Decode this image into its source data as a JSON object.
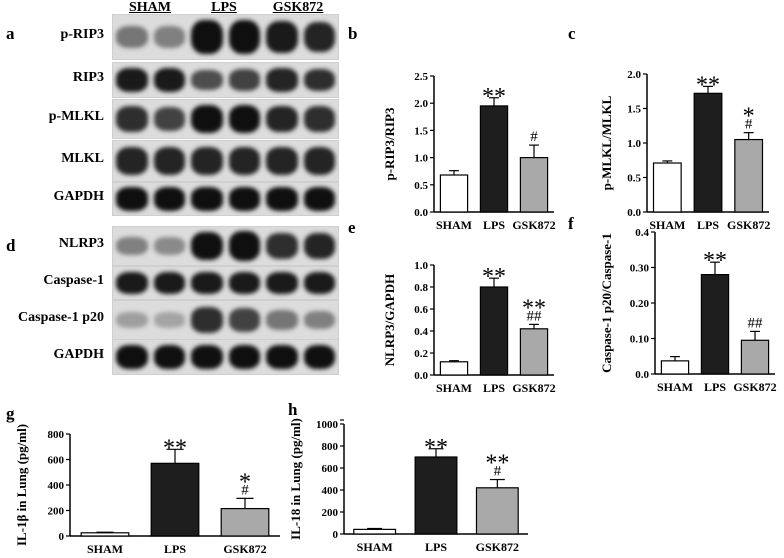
{
  "panel_letters": {
    "a": "a",
    "b": "b",
    "c": "c",
    "d": "d",
    "e": "e",
    "f": "f",
    "g": "g",
    "h": "h"
  },
  "blots": {
    "lanes": [
      "SHAM",
      "LPS",
      "GSK872"
    ],
    "group1": {
      "rows": [
        {
          "label": "p-RIP3",
          "intensity": [
            0.35,
            0.3,
            0.95,
            0.95,
            0.8,
            0.75
          ]
        },
        {
          "label": "RIP3",
          "intensity": [
            0.8,
            0.8,
            0.55,
            0.6,
            0.75,
            0.7
          ]
        },
        {
          "label": "p-MLKL",
          "intensity": [
            0.7,
            0.6,
            0.85,
            0.85,
            0.75,
            0.7
          ]
        },
        {
          "label": "MLKL",
          "intensity": [
            0.75,
            0.75,
            0.75,
            0.75,
            0.75,
            0.75
          ]
        },
        {
          "label": "GAPDH",
          "intensity": [
            0.85,
            0.85,
            0.85,
            0.85,
            0.85,
            0.85
          ]
        }
      ]
    },
    "group2": {
      "rows": [
        {
          "label": "NLRP3",
          "intensity": [
            0.3,
            0.25,
            0.9,
            0.95,
            0.7,
            0.75
          ]
        },
        {
          "label": "Caspase-1",
          "intensity": [
            0.8,
            0.8,
            0.8,
            0.8,
            0.8,
            0.8
          ]
        },
        {
          "label": "Caspase-1 p20",
          "intensity": [
            0.15,
            0.12,
            0.7,
            0.6,
            0.35,
            0.3
          ]
        },
        {
          "label": "GAPDH",
          "intensity": [
            0.85,
            0.85,
            0.85,
            0.85,
            0.85,
            0.85
          ]
        }
      ]
    }
  },
  "colors": {
    "sham": "#ffffff",
    "lps": "#1e1e1e",
    "gsk": "#a9a9a9"
  },
  "chart_data": [
    {
      "id": "b",
      "type": "bar",
      "categories": [
        "SHAM",
        "LPS",
        "GSK872"
      ],
      "values": [
        0.68,
        1.95,
        1.0
      ],
      "errors": [
        0.08,
        0.15,
        0.23
      ],
      "ylabel": "p-RIP3/RIP3",
      "ylim": [
        0,
        2.5
      ],
      "yticks": [
        "0.0",
        "0.5",
        "1.0",
        "1.5",
        "2.0",
        "2.5"
      ],
      "annotations": [
        "",
        "**",
        "#"
      ]
    },
    {
      "id": "c",
      "type": "bar",
      "categories": [
        "SHAM",
        "LPS",
        "GSK872"
      ],
      "values": [
        0.71,
        1.72,
        1.05
      ],
      "errors": [
        0.03,
        0.1,
        0.1
      ],
      "ylabel": "p-MLKL/MLKL",
      "ylim": [
        0,
        2.0
      ],
      "yticks": [
        "0.0",
        "0.5",
        "1.0",
        "1.5",
        "2.0"
      ],
      "annotations": [
        "",
        "**",
        "*\n#"
      ]
    },
    {
      "id": "e",
      "type": "bar",
      "categories": [
        "SHAM",
        "LPS",
        "GSK872"
      ],
      "values": [
        0.12,
        0.8,
        0.42
      ],
      "errors": [
        0.01,
        0.08,
        0.04
      ],
      "ylabel": "NLRP3/GAPDH",
      "ylim": [
        0,
        1.0
      ],
      "yticks": [
        "0.0",
        "0.2",
        "0.4",
        "0.6",
        "0.8",
        "1.0"
      ],
      "annotations": [
        "",
        "**",
        "**\n##"
      ]
    },
    {
      "id": "f",
      "type": "bar",
      "categories": [
        "SHAM",
        "LPS",
        "GSK872"
      ],
      "values": [
        0.037,
        0.28,
        0.095
      ],
      "errors": [
        0.012,
        0.035,
        0.025
      ],
      "ylabel": "Caspase-1 p20/Caspase-1",
      "ylim": [
        0,
        0.4
      ],
      "yticks": [
        "0.0",
        "0.10",
        "0.20",
        "0.30",
        "0.4"
      ],
      "annotations": [
        "",
        "**",
        "##"
      ]
    },
    {
      "id": "g",
      "type": "bar",
      "categories": [
        "SHAM",
        "LPS",
        "GSK872"
      ],
      "values": [
        25,
        570,
        215
      ],
      "errors": [
        5,
        110,
        80
      ],
      "ylabel": "IL-1β in Lung (pg/ml)",
      "ylim": [
        0,
        800
      ],
      "yticks": [
        "0",
        "200",
        "400",
        "600",
        "800"
      ],
      "annotations": [
        "",
        "**",
        "*\n#"
      ]
    },
    {
      "id": "h",
      "type": "bar",
      "categories": [
        "SHAM",
        "LPS",
        "GSK872"
      ],
      "values": [
        42,
        700,
        420
      ],
      "errors": [
        8,
        75,
        75
      ],
      "ylabel": "IL-18 in Lung (pg/ml)",
      "ylim": [
        0,
        1000
      ],
      "yticks": [
        "0",
        "200",
        "400",
        "600",
        "800",
        "1000"
      ],
      "extraTopTick": {
        "value": 1180,
        "label": "1180"
      },
      "annotations": [
        "",
        "**",
        "**\n#"
      ]
    }
  ]
}
